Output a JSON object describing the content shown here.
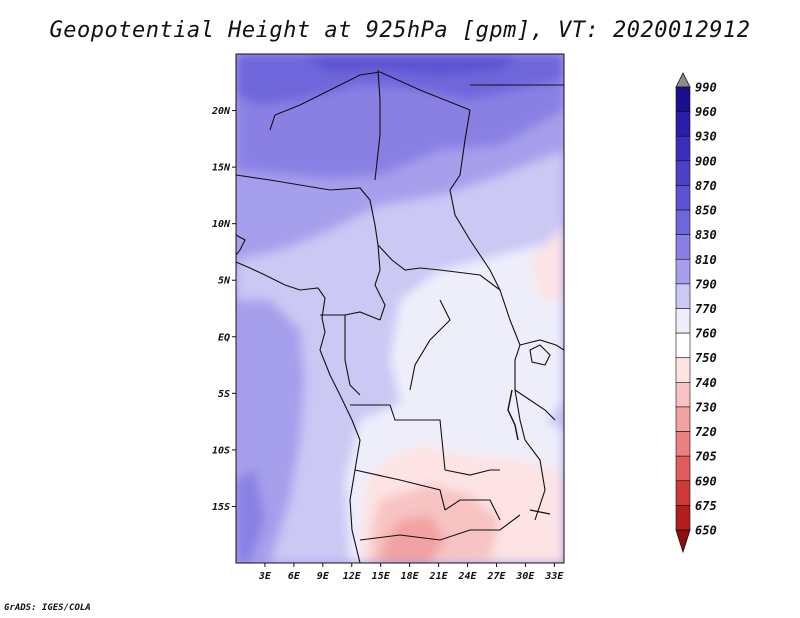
{
  "title": "Geopotential Height at 925hPa [gpm], VT: 2020012912",
  "credit": "GrADS: IGES/COLA",
  "map": {
    "variable": "Geopotential Height",
    "level": "925hPa",
    "units": "gpm",
    "valid_time": "2020012912",
    "lat_range": [
      -20,
      25
    ],
    "lon_range": [
      0,
      34
    ],
    "lat_labels": [
      {
        "lat": 20,
        "text": "20N"
      },
      {
        "lat": 15,
        "text": "15N"
      },
      {
        "lat": 10,
        "text": "10N"
      },
      {
        "lat": 5,
        "text": "5N"
      },
      {
        "lat": 0,
        "text": "EQ"
      },
      {
        "lat": -5,
        "text": "5S"
      },
      {
        "lat": -10,
        "text": "10S"
      },
      {
        "lat": -15,
        "text": "15S"
      }
    ],
    "lon_labels": [
      {
        "lon": 3,
        "text": "3E"
      },
      {
        "lon": 6,
        "text": "6E"
      },
      {
        "lon": 9,
        "text": "9E"
      },
      {
        "lon": 12,
        "text": "12E"
      },
      {
        "lon": 15,
        "text": "15E"
      },
      {
        "lon": 18,
        "text": "18E"
      },
      {
        "lon": 21,
        "text": "21E"
      },
      {
        "lon": 24,
        "text": "24E"
      },
      {
        "lon": 27,
        "text": "27E"
      },
      {
        "lon": 30,
        "text": "30E"
      },
      {
        "lon": 33,
        "text": "33E"
      }
    ]
  },
  "colorbar": {
    "levels": [
      "990",
      "960",
      "930",
      "900",
      "870",
      "850",
      "830",
      "810",
      "790",
      "770",
      "760",
      "750",
      "740",
      "730",
      "720",
      "705",
      "690",
      "675",
      "650"
    ],
    "colors": [
      "#8c8c8c",
      "#1a0f8e",
      "#2a1ea8",
      "#3a2fbc",
      "#4b40c8",
      "#5d53d2",
      "#7066dc",
      "#8a80e4",
      "#a69fec",
      "#cbc8f4",
      "#eeeefb",
      "#ffffff",
      "#fde3e3",
      "#f8c3c3",
      "#f2a2a2",
      "#ea8080",
      "#e05c5c",
      "#cf3838",
      "#b01e1e",
      "#8e0e0e"
    ]
  }
}
